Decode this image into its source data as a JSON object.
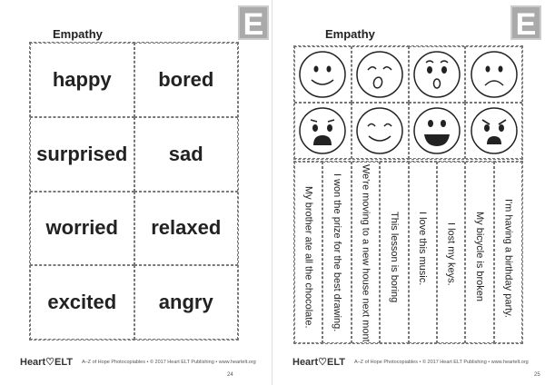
{
  "left_page": {
    "title": "Empathy",
    "badge": "E",
    "words": [
      "happy",
      "bored",
      "surprised",
      "sad",
      "worried",
      "relaxed",
      "excited",
      "angry"
    ],
    "footer_logo": "Heart♡ELT",
    "footer_credit": "A–Z of Hope Photocopiables • © 2017 Heart ELT Publishing • www.heartelt.org",
    "page_number": "24"
  },
  "right_page": {
    "title": "Empathy",
    "badge": "E",
    "faces": [
      "happy-face-icon",
      "bored-yawning-face-icon",
      "surprised-face-icon",
      "sad-face-icon",
      "worried-face-icon",
      "relaxed-face-icon",
      "excited-face-icon",
      "angry-face-icon"
    ],
    "sentences": [
      "My brother ate all the chocolate.",
      "I won the prize for the best drawing.",
      "We're moving to a new house next month.",
      "This lesson is boring",
      "I love this music.",
      "I lost my keys.",
      "My bicycle is broken",
      "I'm having a birthday party."
    ],
    "footer_logo": "Heart♡ELT",
    "footer_credit": "A–Z of Hope Photocopiables • © 2017 Heart ELT Publishing • www.heartelt.org",
    "page_number": "25"
  }
}
